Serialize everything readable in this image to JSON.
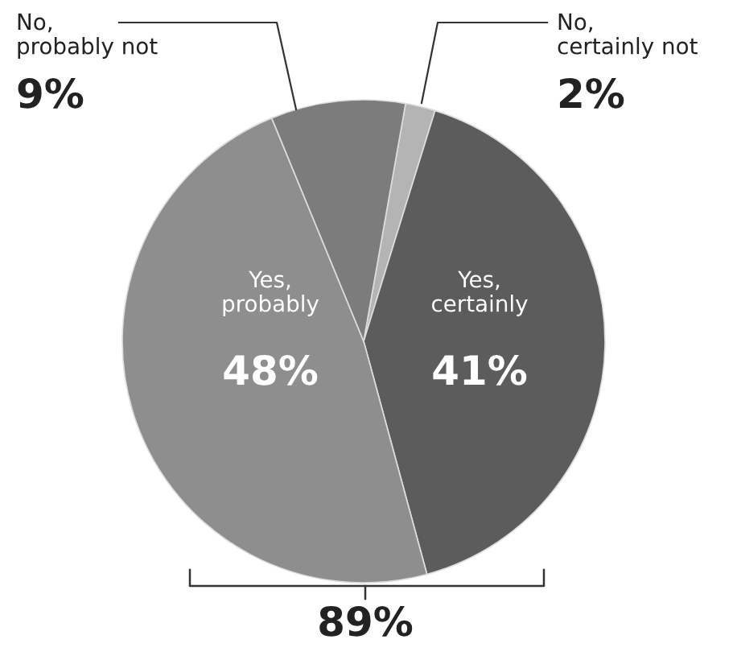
{
  "chart_data": {
    "type": "pie",
    "categories": [
      "No,\ncertainly not",
      "Yes,\ncertainly",
      "Yes,\nprobably",
      "No,\nprobably not"
    ],
    "values": [
      2,
      41,
      48,
      9
    ],
    "colors": [
      "#b4b4b4",
      "#5c5c5c",
      "#8e8e8e",
      "#7c7c7c"
    ],
    "value_labels": [
      "2%",
      "41%",
      "48%",
      "9%"
    ],
    "annotations": [
      "89%"
    ]
  }
}
